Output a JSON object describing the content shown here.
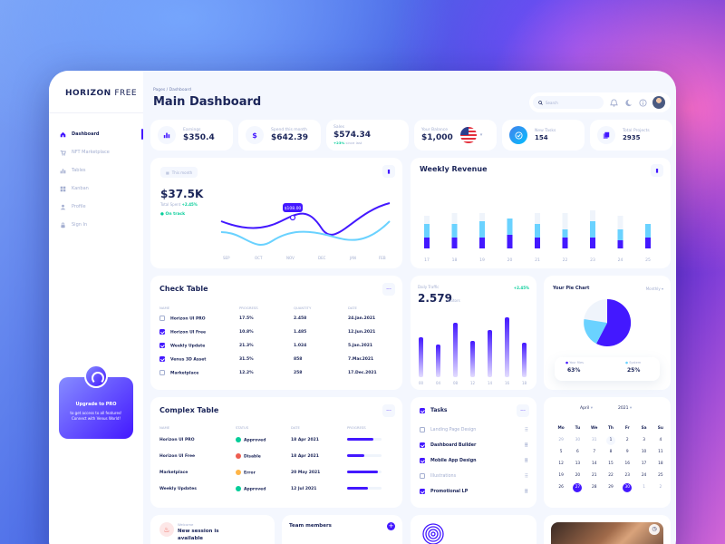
{
  "brand": {
    "bold": "HORIZON",
    "light": "FREE"
  },
  "sidebar": {
    "items": [
      {
        "label": "Dashboard",
        "icon": "home-icon",
        "active": true
      },
      {
        "label": "NFT Marketplace",
        "icon": "cart-icon"
      },
      {
        "label": "Tables",
        "icon": "bar-chart-icon"
      },
      {
        "label": "Kanban",
        "icon": "grid-icon"
      },
      {
        "label": "Profile",
        "icon": "person-icon"
      },
      {
        "label": "Sign In",
        "icon": "lock-icon"
      }
    ],
    "upgrade": {
      "title": "Upgrade to PRO",
      "line1": "to get access to all features!",
      "line2": "Connect with Venus World!"
    }
  },
  "header": {
    "breadcrumb": "Pages / Dashboard",
    "title": "Main Dashboard",
    "search_placeholder": "Search"
  },
  "stats": [
    {
      "label": "Earnings",
      "value": "$350.4",
      "icon": "bar-chart-icon"
    },
    {
      "label": "Spend this month",
      "value": "$642.39",
      "icon": "dollar-icon"
    },
    {
      "label": "Sales",
      "value": "$574.34",
      "delta": "+23%",
      "delta_suffix": "since last"
    },
    {
      "label": "Your Balance",
      "value": "$1,000",
      "icon": "us-flag-icon"
    },
    {
      "label": "New Tasks",
      "value": "154",
      "icon": "check-circle-icon"
    },
    {
      "label": "Total Projects",
      "value": "2935",
      "icon": "copy-icon"
    }
  ],
  "revenue_card": {
    "period": "This month",
    "value": "$37.5K",
    "label": "Total Spent",
    "delta": "+2.45%",
    "status": "On track",
    "tooltip": "$108.00",
    "months": [
      "SEP",
      "OCT",
      "NOV",
      "DEC",
      "JAN",
      "FEB"
    ]
  },
  "weekly_revenue": {
    "title": "Weekly Revenue",
    "days": [
      "17",
      "18",
      "19",
      "20",
      "21",
      "22",
      "23",
      "24",
      "25"
    ],
    "colors": {
      "top": "#eff4fb",
      "mid": "#6ad2ff",
      "bottom": "#4318ff"
    }
  },
  "check_table": {
    "title": "Check Table",
    "columns": [
      "NAME",
      "PROGRESS",
      "QUANTITY",
      "DATE"
    ],
    "rows": [
      {
        "name": "Horizon UI PRO",
        "progress": "17.5%",
        "quantity": "2.458",
        "date": "24.Jan.2021",
        "checked": false
      },
      {
        "name": "Horizon UI Free",
        "progress": "10.8%",
        "quantity": "1.485",
        "date": "12.Jun.2021",
        "checked": true
      },
      {
        "name": "Weekly Update",
        "progress": "21.3%",
        "quantity": "1.024",
        "date": "5.Jan.2021",
        "checked": true
      },
      {
        "name": "Venus 3D Asset",
        "progress": "31.5%",
        "quantity": "858",
        "date": "7.Mar.2021",
        "checked": true
      },
      {
        "name": "Marketplace",
        "progress": "12.2%",
        "quantity": "258",
        "date": "17.Dec.2021",
        "checked": false
      }
    ]
  },
  "daily_traffic": {
    "label": "Daily Traffic",
    "value": "2.579",
    "unit": "Visitors",
    "delta": "+2.45%",
    "hours": [
      "00",
      "04",
      "08",
      "12",
      "14",
      "16",
      "18"
    ]
  },
  "pie_card": {
    "title": "Your Pie Chart",
    "period": "Monthly",
    "legend": [
      {
        "name": "Your files",
        "value": "63%"
      },
      {
        "name": "System",
        "value": "25%"
      }
    ]
  },
  "complex_table": {
    "title": "Complex Table",
    "columns": [
      "NAME",
      "STATUS",
      "DATE",
      "PROGRESS"
    ],
    "rows": [
      {
        "name": "Horizon UI PRO",
        "status": "Approved",
        "date": "18 Apr 2021",
        "progress": 0.75
      },
      {
        "name": "Horizon UI Free",
        "status": "Disable",
        "date": "18 Apr 2021",
        "progress": 0.5
      },
      {
        "name": "Marketplace",
        "status": "Error",
        "date": "20 May 2021",
        "progress": 0.9
      },
      {
        "name": "Weekly Updates",
        "status": "Approved",
        "date": "12 Jul 2021",
        "progress": 0.6
      }
    ]
  },
  "tasks": {
    "title": "Tasks",
    "items": [
      {
        "label": "Landing Page Design",
        "done": false
      },
      {
        "label": "Dashboard Builder",
        "done": true
      },
      {
        "label": "Mobile App Design",
        "done": true
      },
      {
        "label": "Illustrations",
        "done": false
      },
      {
        "label": "Promotional LP",
        "done": true
      }
    ]
  },
  "calendar": {
    "month": "April",
    "year": "2021",
    "dow": [
      "Mo",
      "Tu",
      "We",
      "Th",
      "Fr",
      "Sa",
      "Su"
    ],
    "weeks": [
      [
        "29",
        "30",
        "31",
        "1",
        "2",
        "3",
        "4"
      ],
      [
        "5",
        "6",
        "7",
        "8",
        "9",
        "10",
        "11"
      ],
      [
        "12",
        "13",
        "14",
        "15",
        "16",
        "17",
        "18"
      ],
      [
        "19",
        "20",
        "21",
        "22",
        "23",
        "24",
        "25"
      ],
      [
        "26",
        "27",
        "28",
        "29",
        "30",
        "1",
        "2"
      ]
    ],
    "selected": [
      "27",
      "30"
    ]
  },
  "bottom": {
    "session_label": "Welcome",
    "session_text": "New session is available",
    "team_title": "Team members"
  }
}
